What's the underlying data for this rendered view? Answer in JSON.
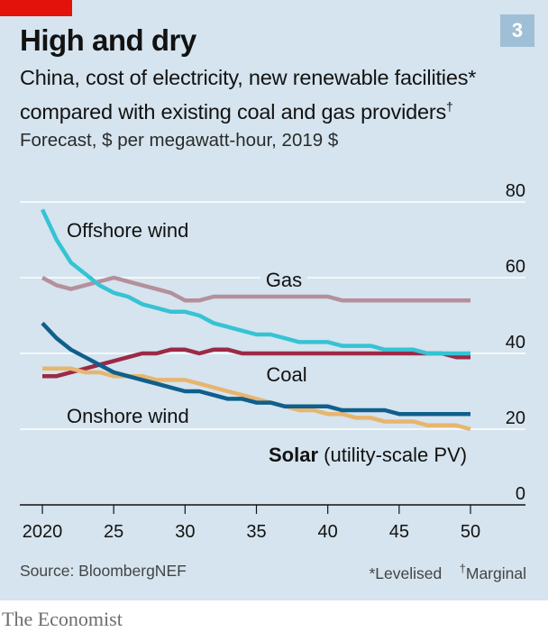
{
  "chart_number": "3",
  "title": "High and dry",
  "subtitle_line1": "China, cost of electricity, new renewable facilities",
  "subtitle_mark1": "*",
  "subtitle_line2": "compared with existing coal and gas providers",
  "subtitle_mark2": "†",
  "units": "Forecast, $ per megawatt-hour, 2019 $",
  "source": "Source: BloombergNEF",
  "footnote_1": "*Levelised",
  "footnote_mark2": "†",
  "footnote_2": "Marginal",
  "brand": "The Economist",
  "colors": {
    "panel": "#d5e4ee",
    "brand_red": "#e3120b",
    "offshore_wind": "#36c3d4",
    "gas": "#b58f9c",
    "coal": "#9b2a47",
    "onshore_wind": "#0f5f8d",
    "solar": "#e8b56e",
    "grid": "#ffffff",
    "baseline": "#121212"
  },
  "chart_data": {
    "type": "line",
    "x": [
      2020,
      2021,
      2022,
      2023,
      2024,
      2025,
      2026,
      2027,
      2028,
      2029,
      2030,
      2031,
      2032,
      2033,
      2034,
      2035,
      2036,
      2037,
      2038,
      2039,
      2040,
      2041,
      2042,
      2043,
      2044,
      2045,
      2046,
      2047,
      2048,
      2049,
      2050
    ],
    "x_tick_labels": [
      "2020",
      "25",
      "30",
      "35",
      "40",
      "45",
      "50"
    ],
    "x_ticks": [
      2020,
      2025,
      2030,
      2035,
      2040,
      2045,
      2050
    ],
    "y_ticks": [
      0,
      20,
      40,
      60,
      80
    ],
    "y_tick_labels": [
      "0",
      "20",
      "40",
      "60",
      "80"
    ],
    "ylim": [
      0,
      80
    ],
    "xlim": [
      2019,
      2053
    ],
    "grid": "horizontal",
    "series": [
      {
        "name": "Offshore wind",
        "color_key": "offshore_wind",
        "values": [
          78,
          70,
          64,
          61,
          58,
          56,
          55,
          53,
          52,
          51,
          51,
          50,
          48,
          47,
          46,
          45,
          45,
          44,
          43,
          43,
          43,
          42,
          42,
          42,
          41,
          41,
          41,
          40,
          40,
          40,
          40
        ]
      },
      {
        "name": "Gas",
        "color_key": "gas",
        "values": [
          60,
          58,
          57,
          58,
          59,
          60,
          59,
          58,
          57,
          56,
          54,
          54,
          55,
          55,
          55,
          55,
          55,
          55,
          55,
          55,
          55,
          54,
          54,
          54,
          54,
          54,
          54,
          54,
          54,
          54,
          54
        ]
      },
      {
        "name": "Coal",
        "color_key": "coal",
        "values": [
          34,
          34,
          35,
          36,
          37,
          38,
          39,
          40,
          40,
          41,
          41,
          40,
          41,
          41,
          40,
          40,
          40,
          40,
          40,
          40,
          40,
          40,
          40,
          40,
          40,
          40,
          40,
          40,
          40,
          39,
          39
        ]
      },
      {
        "name": "Onshore wind",
        "color_key": "onshore_wind",
        "values": [
          48,
          44,
          41,
          39,
          37,
          35,
          34,
          33,
          32,
          31,
          30,
          30,
          29,
          28,
          28,
          27,
          27,
          26,
          26,
          26,
          26,
          25,
          25,
          25,
          25,
          24,
          24,
          24,
          24,
          24,
          24
        ]
      },
      {
        "name": "Solar",
        "name_suffix": "(utility-scale PV)",
        "color_key": "solar",
        "values": [
          36,
          36,
          36,
          35,
          35,
          34,
          34,
          34,
          33,
          33,
          33,
          32,
          31,
          30,
          29,
          28,
          27,
          26,
          25,
          25,
          24,
          24,
          23,
          23,
          22,
          22,
          22,
          21,
          21,
          21,
          20
        ]
      }
    ]
  }
}
